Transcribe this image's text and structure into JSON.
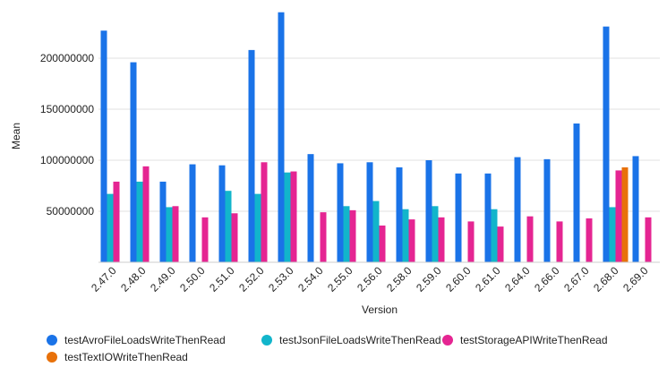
{
  "chart_data": {
    "type": "bar",
    "title": "",
    "xlabel": "Version",
    "ylabel": "Mean",
    "ylim": [
      0,
      250000000
    ],
    "yticks": [
      50000000,
      100000000,
      150000000,
      200000000
    ],
    "ytick_labels": [
      "50000000",
      "100000000",
      "150000000",
      "200000000"
    ],
    "grid": true,
    "legend_position": "bottom",
    "categories": [
      "2.47.0",
      "2.48.0",
      "2.49.0",
      "2.50.0",
      "2.51.0",
      "2.52.0",
      "2.53.0",
      "2.54.0",
      "2.55.0",
      "2.56.0",
      "2.58.0",
      "2.59.0",
      "2.60.0",
      "2.61.0",
      "2.64.0",
      "2.66.0",
      "2.67.0",
      "2.68.0",
      "2.69.0"
    ],
    "series": [
      {
        "name": "testAvroFileLoadsWriteThenRead",
        "color": "#1a73e8",
        "values": [
          227000000,
          196000000,
          79000000,
          96000000,
          95000000,
          208000000,
          245000000,
          106000000,
          97000000,
          98000000,
          93000000,
          100000000,
          87000000,
          87000000,
          103000000,
          101000000,
          136000000,
          231000000,
          104000000
        ]
      },
      {
        "name": "testJsonFileLoadsWriteThenRead",
        "color": "#12b5cb",
        "values": [
          67000000,
          79000000,
          54000000,
          null,
          70000000,
          67000000,
          88000000,
          null,
          55000000,
          60000000,
          52000000,
          55000000,
          null,
          52000000,
          null,
          null,
          null,
          54000000,
          null
        ]
      },
      {
        "name": "testStorageAPIWriteThenRead",
        "color": "#e52592",
        "values": [
          79000000,
          94000000,
          55000000,
          44000000,
          48000000,
          98000000,
          89000000,
          49000000,
          51000000,
          36000000,
          42000000,
          44000000,
          40000000,
          35000000,
          45000000,
          40000000,
          43000000,
          90000000,
          44000000
        ]
      },
      {
        "name": "testTextIOWriteThenRead",
        "color": "#e8710a",
        "values": [
          null,
          null,
          null,
          null,
          null,
          null,
          null,
          null,
          null,
          null,
          null,
          null,
          null,
          null,
          null,
          null,
          null,
          93000000,
          null
        ]
      }
    ]
  }
}
